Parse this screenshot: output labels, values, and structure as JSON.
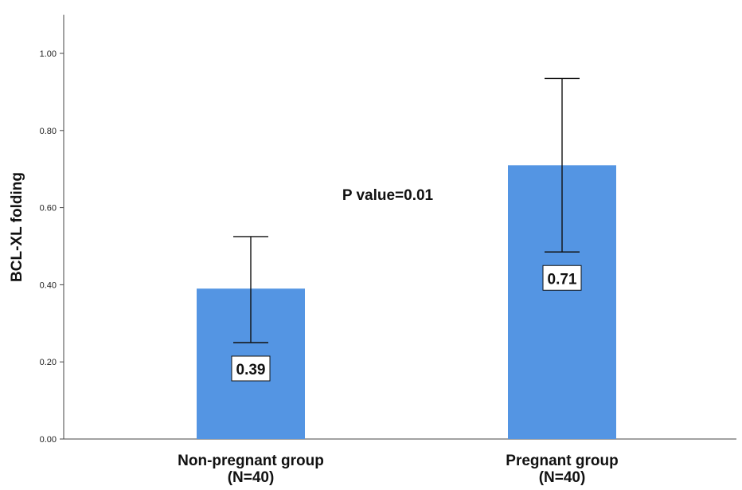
{
  "chart_data": {
    "type": "bar",
    "ylabel": "BCL-XL folding",
    "ylim": [
      0,
      1.1
    ],
    "yticks": [
      "0.00",
      "0.20",
      "0.40",
      "0.60",
      "0.80",
      "1.00"
    ],
    "grid": false,
    "categories": [
      {
        "line1": "Non-pregnant group",
        "line2": "(N=40)"
      },
      {
        "line1": "Pregnant group",
        "line2": "(N=40)"
      }
    ],
    "values": [
      0.39,
      0.71
    ],
    "error_bars": [
      {
        "lower": 0.25,
        "upper": 0.525
      },
      {
        "lower": 0.485,
        "upper": 0.935
      }
    ],
    "data_labels": [
      "0.39",
      "0.71"
    ],
    "annotation": "P value=0.01",
    "bar_color": "#5495e3"
  }
}
